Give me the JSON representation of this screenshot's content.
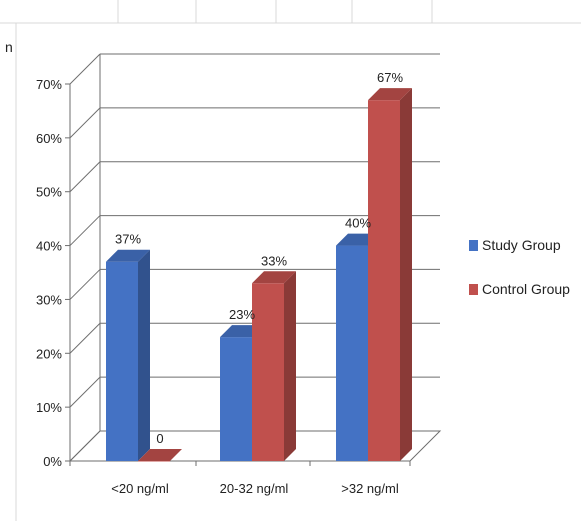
{
  "chart_data": {
    "type": "bar",
    "style": "3d-clustered-column",
    "categories": [
      "<20 ng/ml",
      "20-32 ng/ml",
      ">32 ng/ml"
    ],
    "series": [
      {
        "name": "Study Group",
        "values": [
          37,
          23,
          40
        ],
        "labels": [
          "37%",
          "23%",
          "40%"
        ],
        "color": "#4472c4"
      },
      {
        "name": "Control Group",
        "values": [
          0,
          33,
          67
        ],
        "labels": [
          "0",
          "33%",
          "67%"
        ],
        "color": "#c0504d"
      }
    ],
    "yticks": [
      "0%",
      "10%",
      "20%",
      "30%",
      "40%",
      "50%",
      "60%",
      "70%"
    ],
    "ylim": [
      0,
      70
    ],
    "grid": true,
    "legend_position": "right",
    "title": "",
    "xlabel": "",
    "ylabel": ""
  },
  "fragments": {
    "top_left_glyph": "n"
  }
}
